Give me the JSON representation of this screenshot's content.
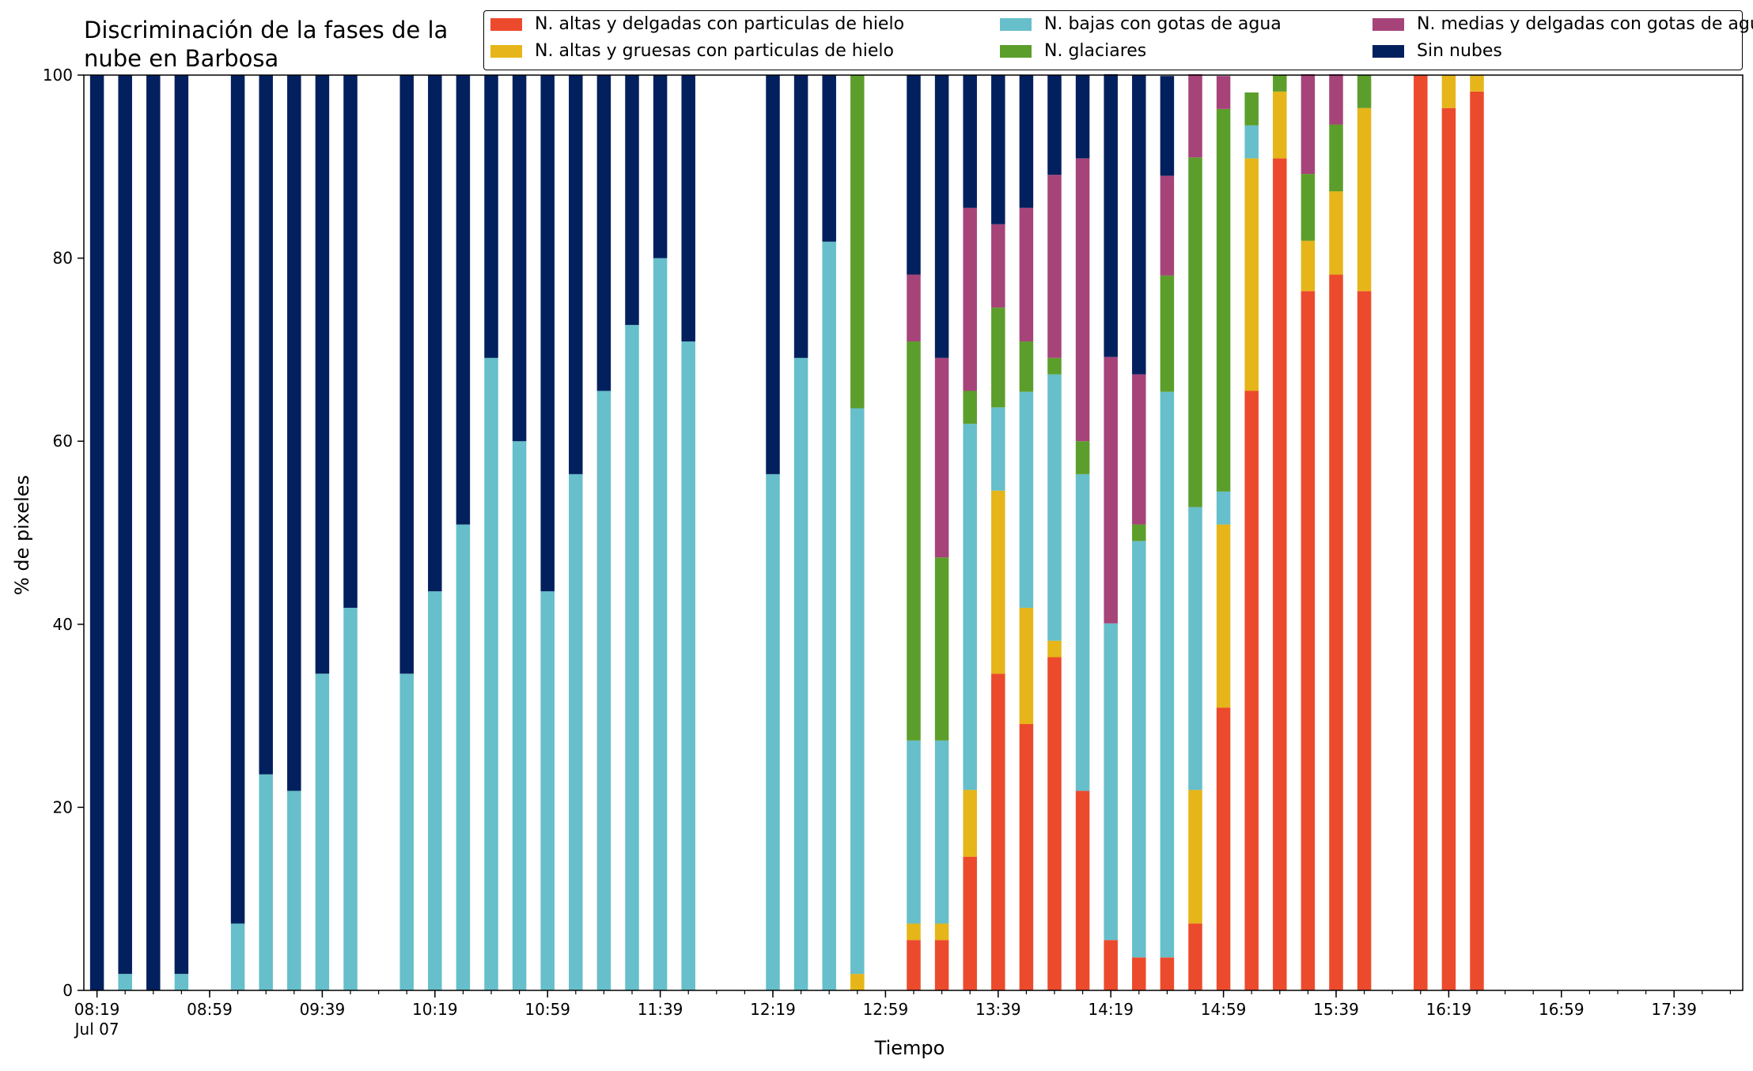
{
  "chart_data": {
    "type": "bar",
    "stacked": true,
    "title": "Discriminación de la fases de la nube en Barbosa",
    "title_lines": [
      "Discriminación de la fases de la",
      "nube en Barbosa"
    ],
    "xlabel": "Tiempo",
    "ylabel": "% de pixeles",
    "ylim": [
      0,
      100
    ],
    "y_ticks": [
      "0",
      "20",
      "40",
      "60",
      "80",
      "100"
    ],
    "grid": false,
    "legend_position": "top-right",
    "x_range": [
      "08:19",
      "18:09"
    ],
    "bar_interval_minutes": 10,
    "x_tick_labels": [
      "08:19",
      "08:59",
      "09:39",
      "10:19",
      "10:59",
      "11:39",
      "12:19",
      "12:59",
      "13:39",
      "14:19",
      "14:59",
      "15:39",
      "16:19",
      "16:59",
      "17:39"
    ],
    "x_date_label": "Jul 07",
    "categories": [
      "08:19",
      "08:29",
      "08:39",
      "08:49",
      "08:59",
      "09:09",
      "09:19",
      "09:29",
      "09:39",
      "09:49",
      "09:59",
      "10:09",
      "10:19",
      "10:29",
      "10:39",
      "10:49",
      "10:59",
      "11:09",
      "11:19",
      "11:29",
      "11:39",
      "11:49",
      "11:59",
      "12:09",
      "12:19",
      "12:29",
      "12:39",
      "12:49",
      "12:59",
      "13:09",
      "13:19",
      "13:29",
      "13:39",
      "13:49",
      "13:59",
      "14:09",
      "14:19",
      "14:29",
      "14:39",
      "14:49",
      "14:59",
      "15:09",
      "15:19",
      "15:29",
      "15:39",
      "15:49",
      "15:59",
      "16:09",
      "16:19",
      "16:29",
      "16:39",
      "16:49",
      "16:59",
      "17:09",
      "17:19",
      "17:29",
      "17:39",
      "17:49",
      "17:59"
    ],
    "series": [
      {
        "name": "N. altas y delgadas con particulas de hielo",
        "color": "#ec4a2c",
        "values": [
          0,
          0,
          0,
          0,
          0,
          0,
          0,
          0,
          0,
          0,
          0,
          0,
          0,
          0,
          0,
          0,
          0,
          0,
          0,
          0,
          0,
          0,
          0,
          0,
          0,
          0,
          0,
          0,
          0,
          5.5,
          5.5,
          14.6,
          34.6,
          29.1,
          36.4,
          21.8,
          5.5,
          3.6,
          3.6,
          7.3,
          30.9,
          65.5,
          90.9,
          76.4,
          78.2,
          76.4,
          0,
          100,
          96.4,
          98.2,
          0,
          0,
          0,
          0,
          0,
          0,
          0,
          0,
          0
        ]
      },
      {
        "name": "N. altas y gruesas con particulas de hielo",
        "color": "#e6b519",
        "values": [
          0,
          0,
          0,
          0,
          0,
          0,
          0,
          0,
          0,
          0,
          0,
          0,
          0,
          0,
          0,
          0,
          0,
          0,
          0,
          0,
          0,
          0,
          0,
          0,
          0,
          0,
          0,
          1.8,
          0,
          1.8,
          1.8,
          7.3,
          20.0,
          12.7,
          1.8,
          0,
          0,
          0,
          0,
          14.6,
          20.0,
          25.4,
          7.3,
          5.5,
          9.1,
          20.0,
          0,
          0,
          3.6,
          1.8,
          0,
          0,
          0,
          0,
          0,
          0,
          0,
          0,
          0
        ]
      },
      {
        "name": "N. bajas con gotas de agua",
        "color": "#66bfca",
        "values": [
          0,
          1.8,
          0,
          1.8,
          0,
          7.3,
          23.6,
          21.8,
          34.6,
          41.8,
          0,
          34.6,
          43.6,
          50.9,
          69.1,
          60.0,
          43.6,
          56.4,
          65.5,
          72.7,
          80.0,
          70.9,
          0,
          0,
          56.4,
          69.1,
          81.8,
          61.8,
          0,
          20.0,
          20.0,
          40.0,
          9.1,
          23.6,
          29.1,
          34.6,
          34.6,
          45.5,
          61.8,
          30.9,
          3.6,
          3.6,
          0,
          0,
          0,
          0,
          0,
          0,
          0,
          0,
          0,
          0,
          0,
          0,
          0,
          0,
          0,
          0,
          0
        ]
      },
      {
        "name": "N. glaciares",
        "color": "#5c9e2b",
        "values": [
          0,
          0,
          0,
          0,
          0,
          0,
          0,
          0,
          0,
          0,
          0,
          0,
          0,
          0,
          0,
          0,
          0,
          0,
          0,
          0,
          0,
          0,
          0,
          0,
          0,
          0,
          0,
          36.4,
          0,
          43.6,
          20.0,
          3.6,
          10.9,
          5.5,
          1.8,
          3.6,
          0,
          1.8,
          12.7,
          38.2,
          41.8,
          3.6,
          1.8,
          7.3,
          7.3,
          3.6,
          0,
          0,
          0,
          0,
          0,
          0,
          0,
          0,
          0,
          0,
          0,
          0,
          0
        ]
      },
      {
        "name": "N. medias y delgadas con gotas de agua",
        "color": "#a6447a",
        "values": [
          0,
          0,
          0,
          0,
          0,
          0,
          0,
          0,
          0,
          0,
          0,
          0,
          0,
          0,
          0,
          0,
          0,
          0,
          0,
          0,
          0,
          0,
          0,
          0,
          0,
          0,
          0,
          0,
          0,
          7.3,
          21.8,
          20.0,
          9.1,
          14.6,
          20.0,
          30.9,
          29.1,
          16.4,
          10.9,
          9.1,
          3.6,
          0,
          0,
          10.9,
          5.5,
          0,
          0,
          0,
          0,
          0,
          0,
          0,
          0,
          0,
          0,
          0,
          0,
          0,
          0
        ]
      },
      {
        "name": "Sin nubes",
        "color": "#03205e",
        "values": [
          100,
          98.2,
          100,
          98.2,
          0,
          92.7,
          76.4,
          78.2,
          65.4,
          58.2,
          0,
          65.4,
          56.4,
          49.1,
          30.9,
          40.0,
          56.4,
          43.6,
          34.5,
          27.3,
          20.0,
          29.1,
          0,
          0,
          43.6,
          30.9,
          18.2,
          0,
          0,
          21.8,
          30.9,
          14.5,
          16.3,
          14.5,
          10.9,
          9.1,
          30.9,
          32.7,
          10.9,
          0,
          0,
          0,
          0,
          0,
          0,
          0,
          0,
          0,
          0,
          0,
          0,
          0,
          0,
          0,
          0,
          0,
          0,
          0,
          0
        ]
      }
    ],
    "legend_order": [
      "N. altas y delgadas con particulas de hielo",
      "N. bajas con gotas de agua",
      "N. medias y delgadas con gotas de agua",
      "N. altas y gruesas con particulas de hielo",
      "N. glaciares",
      "Sin nubes"
    ]
  }
}
